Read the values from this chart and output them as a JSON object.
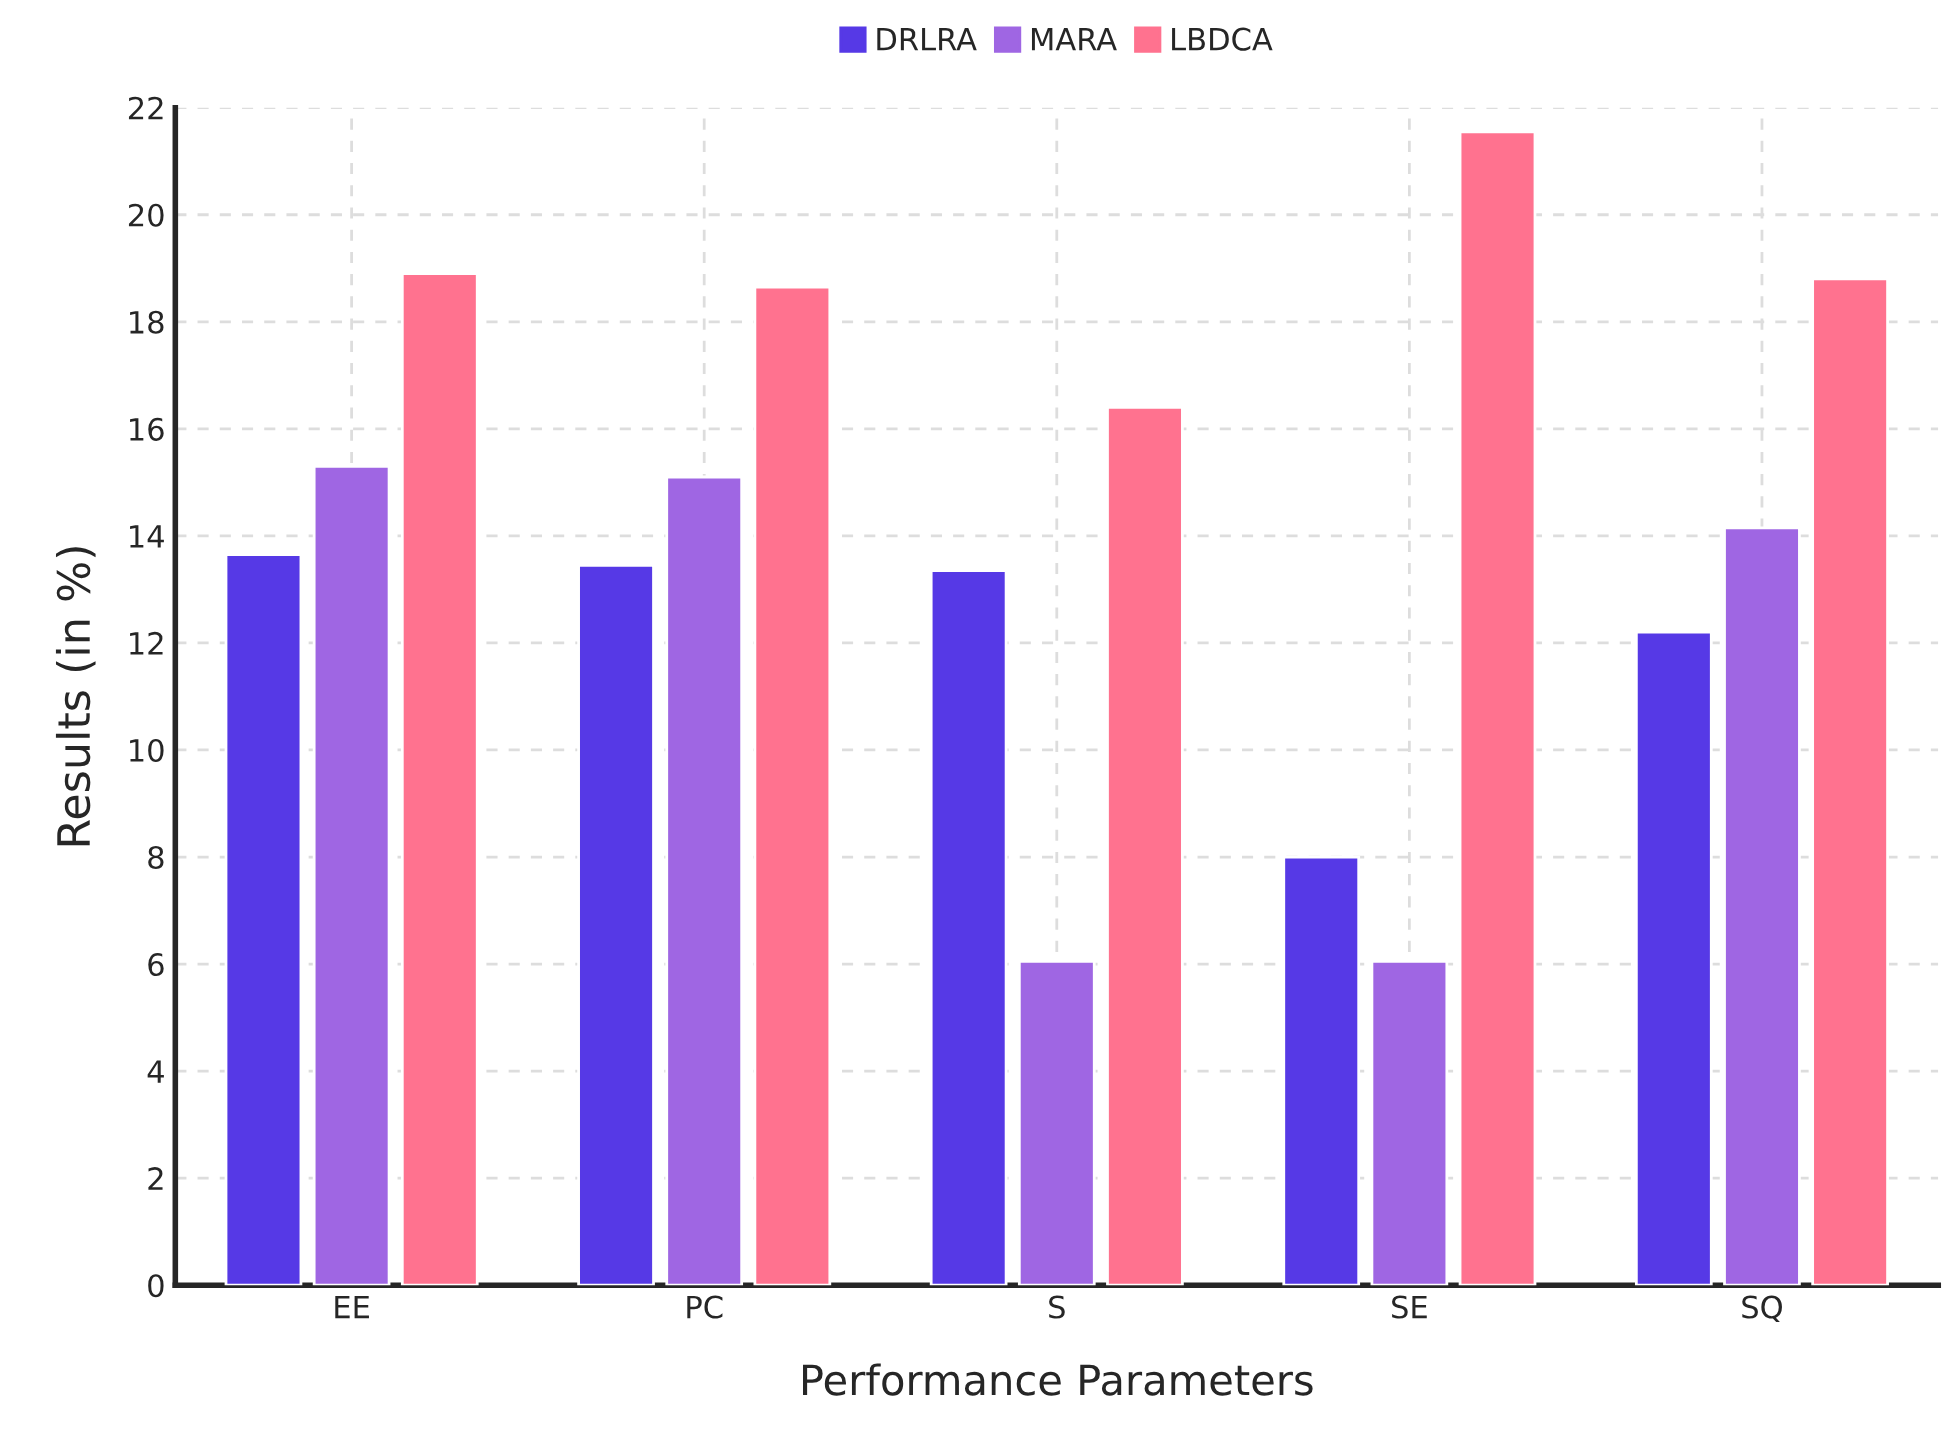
{
  "chart_data": {
    "type": "bar",
    "xlabel": "Performance Parameters",
    "ylabel": "Results (in %)",
    "categories": [
      "EE",
      "PC",
      "S",
      "SE",
      "SQ"
    ],
    "series": [
      {
        "name": "DRLRA",
        "color": "#5639e6",
        "values": [
          13.65,
          13.45,
          13.35,
          8.0,
          12.2
        ]
      },
      {
        "name": "MARA",
        "color": "#9f66e3",
        "values": [
          15.3,
          15.1,
          6.05,
          6.05,
          14.15
        ]
      },
      {
        "name": "LBDCA",
        "color": "#ff728f",
        "values": [
          18.9,
          18.65,
          16.4,
          21.55,
          18.8
        ]
      }
    ],
    "ylim": [
      0,
      22
    ],
    "yticks": [
      0,
      2,
      4,
      6,
      8,
      10,
      12,
      14,
      16,
      18,
      20,
      22
    ],
    "grid": true,
    "legend": "top"
  }
}
